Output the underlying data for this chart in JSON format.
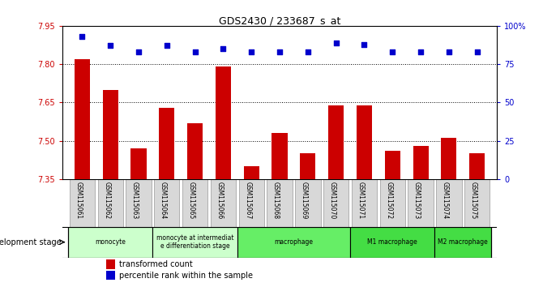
{
  "title": "GDS2430 / 233687_s_at",
  "samples": [
    "GSM115061",
    "GSM115062",
    "GSM115063",
    "GSM115064",
    "GSM115065",
    "GSM115066",
    "GSM115067",
    "GSM115068",
    "GSM115069",
    "GSM115070",
    "GSM115071",
    "GSM115072",
    "GSM115073",
    "GSM115074",
    "GSM115075"
  ],
  "bar_values": [
    7.82,
    7.7,
    7.47,
    7.63,
    7.57,
    7.79,
    7.4,
    7.53,
    7.45,
    7.64,
    7.64,
    7.46,
    7.48,
    7.51,
    7.45
  ],
  "percentile_values": [
    93,
    87,
    83,
    87,
    83,
    85,
    83,
    83,
    83,
    89,
    88,
    83,
    83,
    83,
    83
  ],
  "bar_color": "#cc0000",
  "dot_color": "#0000cc",
  "ylim_left": [
    7.35,
    7.95
  ],
  "ylim_right": [
    0,
    100
  ],
  "yticks_left": [
    7.35,
    7.5,
    7.65,
    7.8,
    7.95
  ],
  "yticks_right": [
    0,
    25,
    50,
    75,
    100
  ],
  "ytick_labels_right": [
    "0",
    "25",
    "50",
    "75",
    "100%"
  ],
  "grid_values": [
    7.5,
    7.65,
    7.8
  ],
  "stage_groups": [
    {
      "label": "monocyte",
      "start": 0,
      "end": 3,
      "color": "#ccffcc"
    },
    {
      "label": "monocyte at intermediat\ne differentiation stage",
      "start": 3,
      "end": 6,
      "color": "#ccffcc"
    },
    {
      "label": "macrophage",
      "start": 6,
      "end": 10,
      "color": "#66ee66"
    },
    {
      "label": "M1 macrophage",
      "start": 10,
      "end": 13,
      "color": "#44dd44"
    },
    {
      "label": "M2 macrophage",
      "start": 13,
      "end": 15,
      "color": "#44dd44"
    }
  ],
  "legend_bar_label": "transformed count",
  "legend_dot_label": "percentile rank within the sample",
  "dev_stage_label": "development stage"
}
